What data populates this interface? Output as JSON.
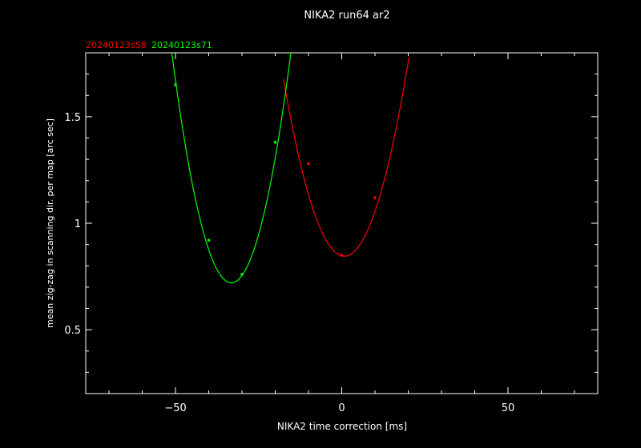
{
  "chart_data": {
    "type": "line",
    "title": "NIKA2 run64 ar2",
    "xlabel": "NIKA2 time correction [ms]",
    "ylabel": "mean zig-zag in scanning dir. per map [arc sec]",
    "xlim": [
      -77,
      77
    ],
    "ylim": [
      0.2,
      1.8
    ],
    "xticks": [
      -50,
      0,
      50
    ],
    "xtick_labels": [
      "−50",
      "0",
      "50"
    ],
    "yticks": [
      0.5,
      1,
      1.5
    ],
    "ytick_labels": [
      "0.5",
      "1",
      "1.5"
    ],
    "grid": false,
    "legend_position": "top-left, above plot frame",
    "background": "#000000",
    "foreground": "#ffffff",
    "series": [
      {
        "name": "20240123s58",
        "color": "#ff0000",
        "points": [
          {
            "x": -10,
            "y": 1.28
          },
          {
            "x": 0,
            "y": 0.85
          },
          {
            "x": 10,
            "y": 1.12
          }
        ],
        "fit": {
          "vertex_x": 0.8,
          "vertex_y": 0.845,
          "curvature": 0.00248,
          "x_range": [
            -17.5,
            20.2
          ]
        }
      },
      {
        "name": "20240123s71",
        "color": "#00ff00",
        "points": [
          {
            "x": -50,
            "y": 1.65
          },
          {
            "x": -40,
            "y": 0.92
          },
          {
            "x": -30,
            "y": 0.76
          },
          {
            "x": -20,
            "y": 1.38
          }
        ],
        "fit": {
          "vertex_x": -33.2,
          "vertex_y": 0.72,
          "curvature": 0.00337,
          "x_range": [
            -51.5,
            -14.6
          ]
        }
      }
    ]
  }
}
